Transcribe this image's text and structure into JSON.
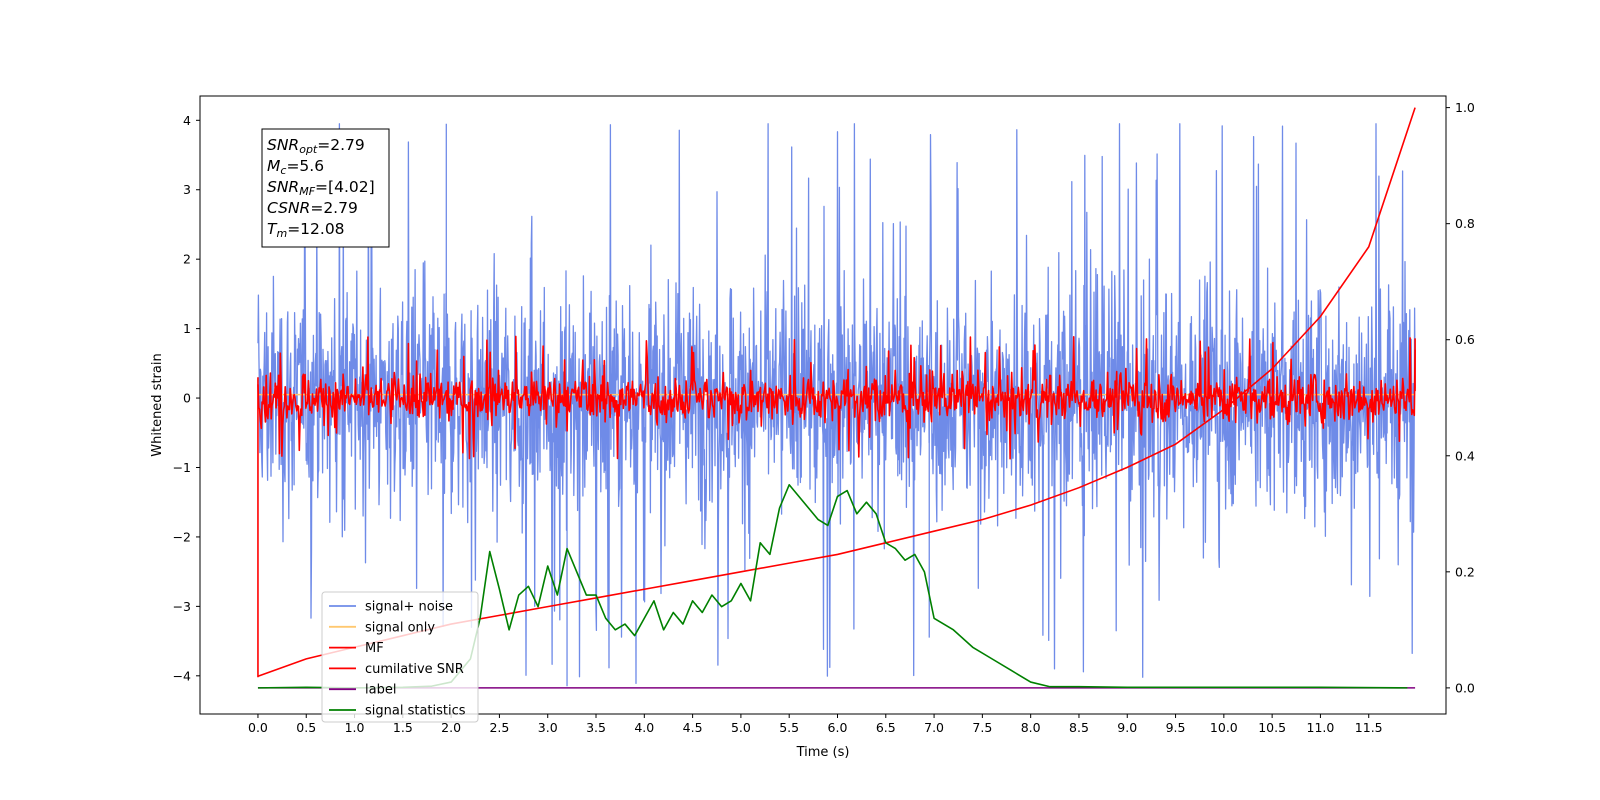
{
  "chart_data": {
    "type": "line",
    "xlabel": "Time (s)",
    "ylabel": "Whitened strain",
    "xlim": [
      -0.6,
      12.3
    ],
    "ylim": [
      -4.55,
      4.35
    ],
    "y2lim": [
      -0.045,
      1.02
    ],
    "x_ticks": [
      "0.0",
      "0.5",
      "1.0",
      "1.5",
      "2.0",
      "2.5",
      "3.0",
      "3.5",
      "4.0",
      "4.5",
      "5.0",
      "5.5",
      "6.0",
      "6.5",
      "7.0",
      "7.5",
      "8.0",
      "8.5",
      "9.0",
      "9.5",
      "10.0",
      "10.5",
      "11.0",
      "11.5"
    ],
    "y_ticks": [
      "4",
      "3",
      "2",
      "1",
      "0",
      "−1",
      "−2",
      "−3",
      "−4"
    ],
    "y2_ticks": [
      "1.0",
      "0.8",
      "0.6",
      "0.4",
      "0.2",
      "0.0"
    ],
    "annotation": [
      {
        "base": "SNR",
        "sub": "opt",
        "value": "=2.79"
      },
      {
        "base": "M",
        "sub": "c",
        "value": "=5.6"
      },
      {
        "base": "SNR",
        "sub": "MF",
        "value": "=[4.02]"
      },
      {
        "base": "CSNR",
        "sub": "",
        "value": "=2.79"
      },
      {
        "base": "T",
        "sub": "m",
        "value": "=12.08"
      }
    ],
    "legend_position": "lower-left",
    "legend": [
      "signal+ noise",
      "signal only",
      "MF",
      "cumilative SNR",
      "label",
      "signal statistics"
    ],
    "colors": {
      "signal_noise": "#6f8be8",
      "signal_only": "#ffc870",
      "mf": "#ff0000",
      "cumulative_snr": "#ff0000",
      "label": "#800080",
      "signal_statistics": "#008000"
    },
    "series": [
      {
        "name": "signal+ noise",
        "axis": "left",
        "style": "noise band",
        "x_range": [
          0.0,
          11.98
        ],
        "band": [
          -2.3,
          2.3
        ],
        "spike_range": [
          -4.15,
          3.95
        ]
      },
      {
        "name": "signal only",
        "axis": "left",
        "x": [
          0.0,
          11.98
        ],
        "y": [
          0.05,
          0.05
        ]
      },
      {
        "name": "MF",
        "axis": "left",
        "style": "noise band",
        "x_range": [
          0.0,
          11.98
        ],
        "band": [
          -0.5,
          0.5
        ],
        "spike_range": [
          -4.02,
          0.98
        ]
      },
      {
        "name": "cumilative SNR",
        "axis": "right",
        "x": [
          0.0,
          0.5,
          1.0,
          1.5,
          2.0,
          2.5,
          3.0,
          3.5,
          4.0,
          4.5,
          5.0,
          5.5,
          6.0,
          6.5,
          7.0,
          7.5,
          8.0,
          8.5,
          9.0,
          9.5,
          10.0,
          10.5,
          11.0,
          11.5,
          11.98
        ],
        "y": [
          0.02,
          0.05,
          0.07,
          0.09,
          0.11,
          0.125,
          0.14,
          0.155,
          0.17,
          0.185,
          0.2,
          0.215,
          0.23,
          0.25,
          0.27,
          0.29,
          0.315,
          0.345,
          0.38,
          0.42,
          0.48,
          0.55,
          0.64,
          0.76,
          1.0
        ]
      },
      {
        "name": "label",
        "axis": "right",
        "x": [
          0.0,
          11.98
        ],
        "y": [
          0.0,
          0.0
        ]
      },
      {
        "name": "signal statistics",
        "axis": "right",
        "x": [
          0.0,
          0.5,
          1.0,
          1.5,
          1.8,
          2.0,
          2.2,
          2.3,
          2.4,
          2.5,
          2.6,
          2.7,
          2.8,
          2.9,
          3.0,
          3.1,
          3.2,
          3.3,
          3.4,
          3.5,
          3.6,
          3.7,
          3.8,
          3.9,
          4.0,
          4.1,
          4.2,
          4.3,
          4.4,
          4.5,
          4.6,
          4.7,
          4.8,
          4.9,
          5.0,
          5.1,
          5.2,
          5.3,
          5.4,
          5.5,
          5.6,
          5.7,
          5.8,
          5.9,
          6.0,
          6.1,
          6.2,
          6.3,
          6.4,
          6.5,
          6.6,
          6.7,
          6.8,
          6.9,
          7.0,
          7.2,
          7.4,
          7.6,
          7.8,
          8.0,
          8.2,
          8.5,
          9.0,
          10.0,
          11.0,
          11.9
        ],
        "y": [
          0.0,
          0.001,
          0.0,
          0.001,
          0.003,
          0.01,
          0.05,
          0.12,
          0.235,
          0.17,
          0.1,
          0.16,
          0.175,
          0.14,
          0.21,
          0.16,
          0.24,
          0.2,
          0.16,
          0.16,
          0.12,
          0.1,
          0.11,
          0.09,
          0.12,
          0.15,
          0.1,
          0.13,
          0.11,
          0.15,
          0.13,
          0.16,
          0.14,
          0.15,
          0.18,
          0.15,
          0.25,
          0.23,
          0.31,
          0.35,
          0.33,
          0.31,
          0.29,
          0.28,
          0.33,
          0.34,
          0.3,
          0.32,
          0.3,
          0.25,
          0.24,
          0.22,
          0.23,
          0.2,
          0.12,
          0.1,
          0.07,
          0.05,
          0.03,
          0.01,
          0.002,
          0.002,
          0.001,
          0.001,
          0.001,
          0.0
        ]
      }
    ]
  }
}
